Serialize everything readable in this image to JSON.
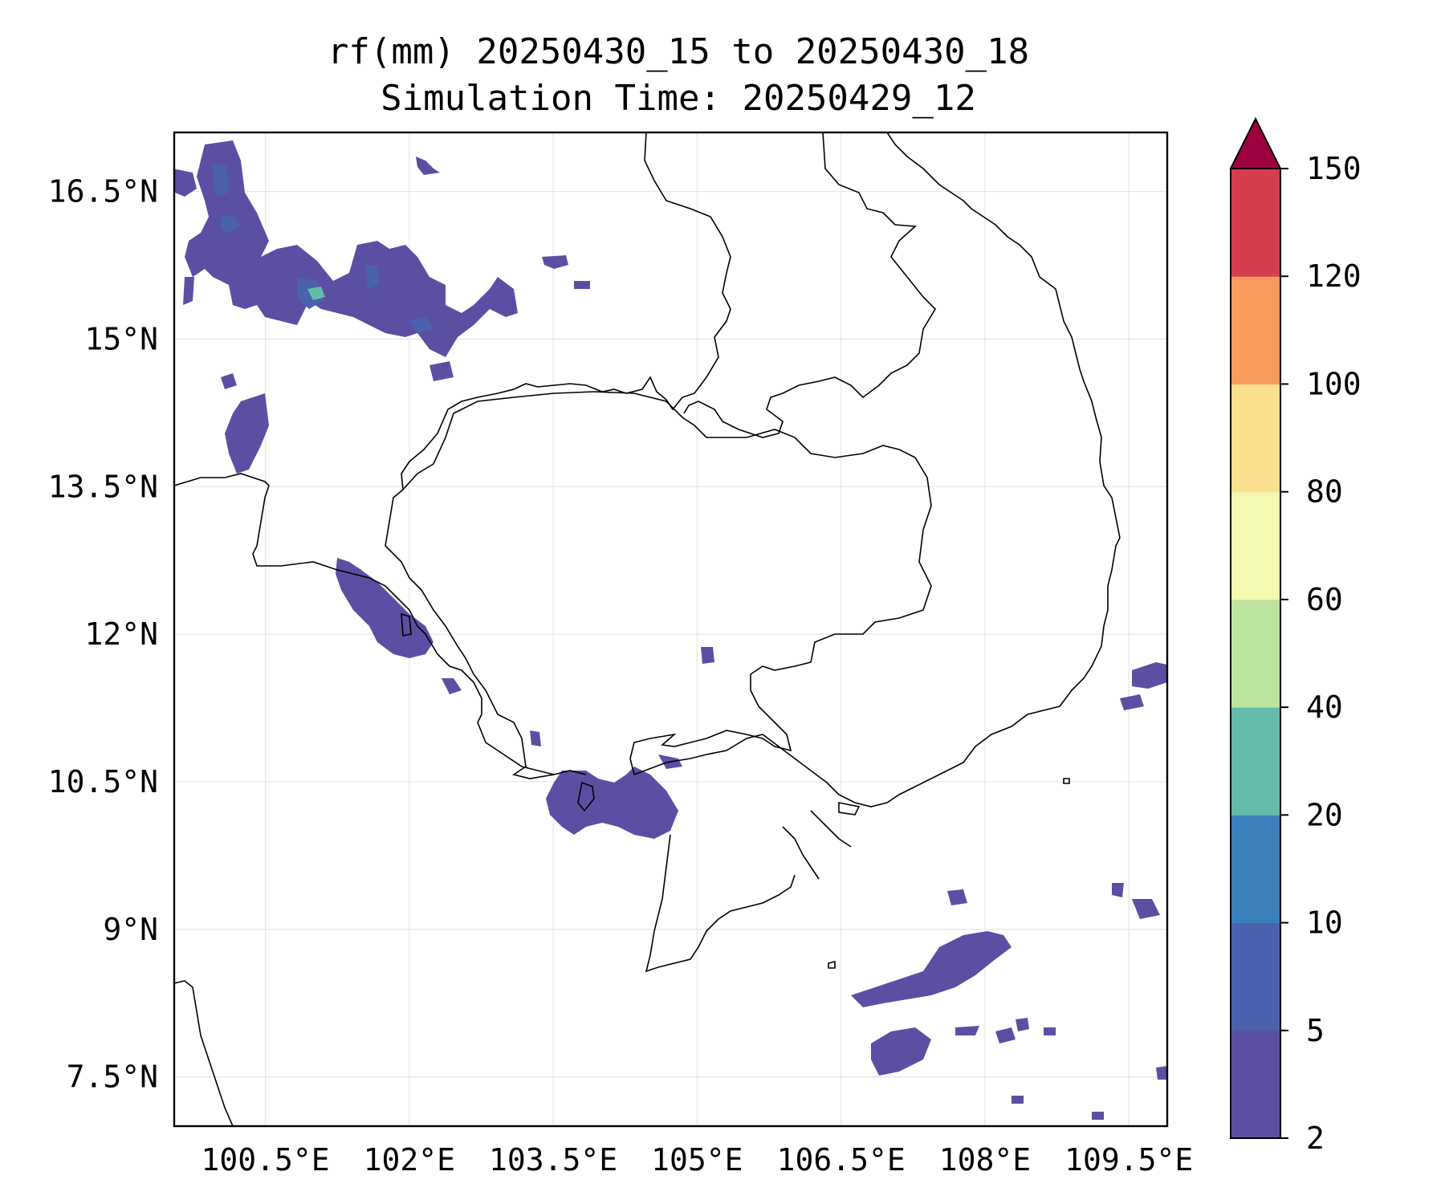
{
  "title": "rf(mm) 20250430_15 to 20250430_18",
  "subtitle": "Simulation Time: 20250429_12",
  "map": {
    "lon_ticks": [
      100.5,
      102,
      103.5,
      105,
      106.5,
      108,
      109.5
    ],
    "lon_tick_labels": [
      "100.5°E",
      "102°E",
      "103.5°E",
      "105°E",
      "106.5°E",
      "108°E",
      "109.5°E"
    ],
    "lat_ticks": [
      16.5,
      15,
      13.5,
      12,
      10.5,
      9,
      7.5
    ],
    "lat_tick_labels": [
      "16.5°N",
      "15°N",
      "13.5°N",
      "12°N",
      "10.5°N",
      "9°N",
      "7.5°N"
    ],
    "lon_range": [
      99.55,
      109.9
    ],
    "lat_range": [
      7.0,
      17.1
    ],
    "grid": true
  },
  "colorbar": {
    "levels": [
      2,
      5,
      10,
      20,
      40,
      60,
      80,
      100,
      120,
      150
    ],
    "labels": [
      "2",
      "5",
      "10",
      "20",
      "40",
      "60",
      "80",
      "100",
      "120",
      "150"
    ],
    "colors": [
      "#5b4fa3",
      "#4a61ad",
      "#3b80bb",
      "#63bca9",
      "#bde3a0",
      "#f3f9b0",
      "#fadf8f",
      "#f99b5d",
      "#d63e4f"
    ],
    "extend_color": "#9e0142",
    "extend": "max"
  }
}
